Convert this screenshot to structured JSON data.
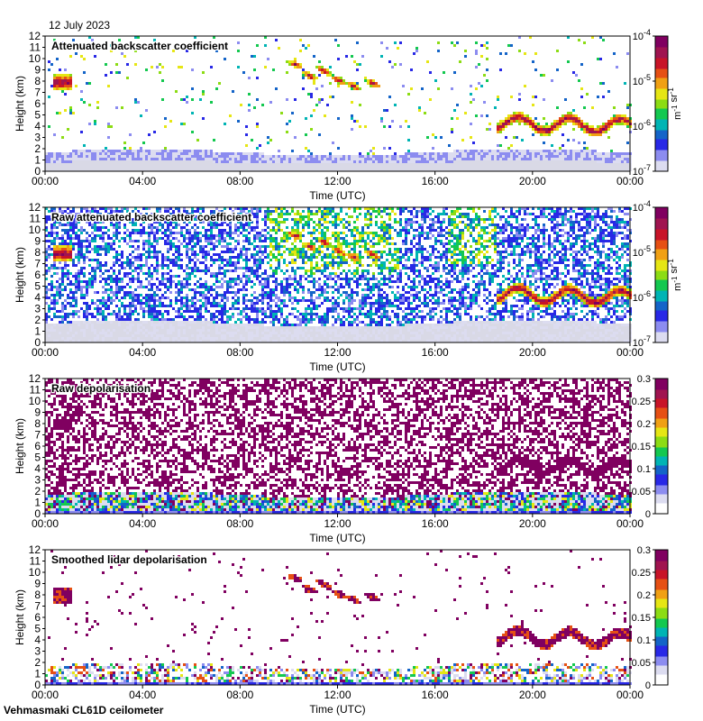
{
  "date": "12 July 2023",
  "footer": "Vehmasmaki CL61D ceilometer",
  "colors": {
    "palette": [
      "#ffffff",
      "#dcdcf0",
      "#8c8cf0",
      "#2828e6",
      "#1464c8",
      "#00b4b4",
      "#14c850",
      "#8cdc14",
      "#e6e614",
      "#f0a014",
      "#e65014",
      "#c81428",
      "#a01450",
      "#800060"
    ],
    "background": "#ffffff",
    "noise_floor": "#d9d9e6"
  },
  "chart_data": [
    {
      "type": "heatmap",
      "title": "Attenuated backscatter coefficient",
      "xlabel": "Time (UTC)",
      "ylabel": "Height (km)",
      "x_ticks": [
        "00:00",
        "04:00",
        "08:00",
        "12:00",
        "16:00",
        "20:00",
        "00:00"
      ],
      "y_ticks": [
        "0",
        "1",
        "2",
        "3",
        "4",
        "5",
        "6",
        "7",
        "8",
        "9",
        "10",
        "11",
        "12"
      ],
      "xlim": [
        0,
        24
      ],
      "ylim": [
        0,
        12
      ],
      "colorbar": {
        "scale": "log",
        "ticks": [
          "10-7",
          "10-6",
          "10-5",
          "10-4"
        ],
        "label": "m-1 sr-1"
      },
      "style": "cleaned"
    },
    {
      "type": "heatmap",
      "title": "Raw attenuated backscatter coefficient",
      "xlabel": "Time (UTC)",
      "ylabel": "Height (km)",
      "x_ticks": [
        "00:00",
        "04:00",
        "08:00",
        "12:00",
        "16:00",
        "20:00",
        "00:00"
      ],
      "y_ticks": [
        "0",
        "1",
        "2",
        "3",
        "4",
        "5",
        "6",
        "7",
        "8",
        "9",
        "10",
        "11",
        "12"
      ],
      "xlim": [
        0,
        24
      ],
      "ylim": [
        0,
        12
      ],
      "colorbar": {
        "scale": "log",
        "ticks": [
          "10-7",
          "10-6",
          "10-5",
          "10-4"
        ],
        "label": "m-1 sr-1"
      },
      "style": "raw_backscatter"
    },
    {
      "type": "heatmap",
      "title": "Raw depolarisation",
      "xlabel": "Time (UTC)",
      "ylabel": "Height (km)",
      "x_ticks": [
        "00:00",
        "04:00",
        "08:00",
        "12:00",
        "16:00",
        "20:00",
        "00:00"
      ],
      "y_ticks": [
        "0",
        "1",
        "2",
        "3",
        "4",
        "5",
        "6",
        "7",
        "8",
        "9",
        "10",
        "11",
        "12"
      ],
      "xlim": [
        0,
        24
      ],
      "ylim": [
        0,
        12
      ],
      "colorbar": {
        "scale": "linear",
        "ticks": [
          "0",
          "0.05",
          "0.1",
          "0.15",
          "0.2",
          "0.25",
          "0.3"
        ],
        "label": ""
      },
      "style": "raw_depol"
    },
    {
      "type": "heatmap",
      "title": "Smoothed lidar depolarisation",
      "xlabel": "Time (UTC)",
      "ylabel": "Height (km)",
      "x_ticks": [
        "00:00",
        "04:00",
        "08:00",
        "12:00",
        "16:00",
        "20:00",
        "00:00"
      ],
      "y_ticks": [
        "0",
        "1",
        "2",
        "3",
        "4",
        "5",
        "6",
        "7",
        "8",
        "9",
        "10",
        "11",
        "12"
      ],
      "xlim": [
        0,
        24
      ],
      "ylim": [
        0,
        12
      ],
      "colorbar": {
        "scale": "linear",
        "ticks": [
          "0",
          "0.05",
          "0.1",
          "0.15",
          "0.2",
          "0.25",
          "0.3"
        ],
        "label": ""
      },
      "style": "smoothed_depol"
    }
  ],
  "features": {
    "boundary_layer_top_km": 1.8,
    "high_cloud_streaks": [
      {
        "t": 10.2,
        "h": 9.6
      },
      {
        "t": 10.8,
        "h": 8.6
      },
      {
        "t": 11.4,
        "h": 9.0
      },
      {
        "t": 12.0,
        "h": 8.2
      },
      {
        "t": 12.6,
        "h": 7.7
      },
      {
        "t": 13.4,
        "h": 7.9
      }
    ],
    "low_cloud_layer": {
      "t_start": 18.5,
      "t_end": 24.0,
      "h": 4.4
    },
    "early_cloud": {
      "t_start": 0.3,
      "t_end": 1.0,
      "h": 8.0
    }
  }
}
